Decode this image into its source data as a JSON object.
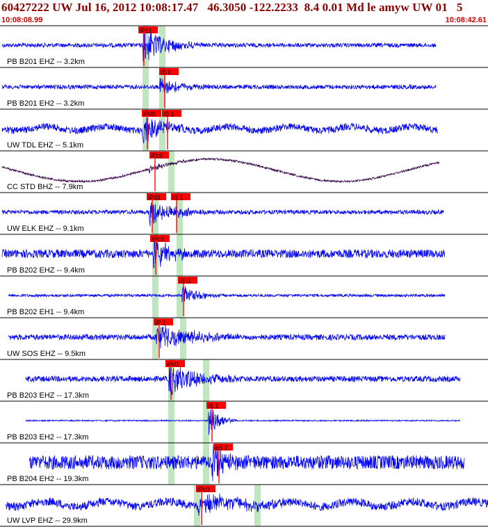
{
  "header": {
    "title": "60427222 UW Jul 16, 2012 10:08:17.47   46.3050 -122.2233  8.4 0.01 Md le amyw UW 01   5",
    "start_time": "10:08:08.99",
    "end_time": "10:08:42.61"
  },
  "colors": {
    "trace": "#0000ff",
    "trace_broadband": "#330044",
    "pick": "#ff0000",
    "pick_label_bg": "#ff0000",
    "window": "#bfe6bf",
    "separator": "#000000",
    "title": "#8b0000"
  },
  "traces": [
    {
      "label": "PB B201 EHZ -- 3.2km",
      "picks": [
        "iPc1"
      ]
    },
    {
      "label": "PB B201 EH2 -- 3.2km",
      "picks": [
        "iS 0"
      ]
    },
    {
      "label": "UW TDL EHZ -- 5.1km",
      "picks": [
        "iPd0",
        "iS 1"
      ]
    },
    {
      "label": "CC STD BHZ -- 7.9km",
      "picks": [
        "iPc0"
      ]
    },
    {
      "label": "UW ELK EHZ -- 9.1km",
      "picks": [
        "iPd1",
        "iS 1"
      ]
    },
    {
      "label": "PB B202 EHZ -- 9.4km",
      "picks": [
        "iPc0"
      ]
    },
    {
      "label": "PB B202 EH1 -- 9.4km",
      "picks": [
        "iS 0"
      ]
    },
    {
      "label": "UW SOS EHZ -- 9.5km",
      "picks": [
        "iP 1"
      ]
    },
    {
      "label": "PB B203 EHZ -- 17.3km",
      "picks": [
        "iPd1"
      ]
    },
    {
      "label": "PB B203 EH2 -- 17.3km",
      "picks": [
        "iS 1"
      ]
    },
    {
      "label": "PB B204 EH2 -- 19.3km",
      "picks": [
        "eS 2"
      ]
    },
    {
      "label": "UW LVP EHZ -- 29.9km",
      "picks": [
        "iPc0"
      ]
    }
  ]
}
